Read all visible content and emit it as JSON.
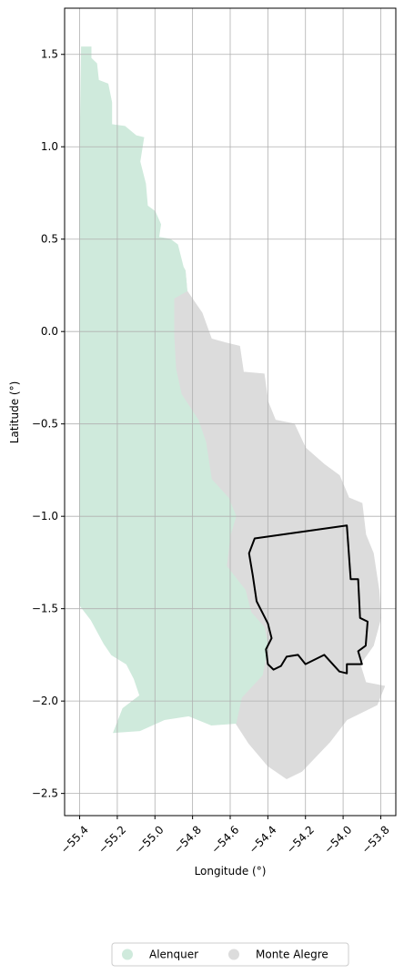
{
  "chart_data": {
    "type": "map",
    "xlabel": "Longitude (°)",
    "ylabel": "Latitude (°)",
    "xlim": [
      -55.48,
      -53.72
    ],
    "ylim": [
      -2.62,
      1.75
    ],
    "x_ticks": [
      {
        "value": -55.4,
        "label": "−55.4"
      },
      {
        "value": -55.2,
        "label": "−55.2"
      },
      {
        "value": -55.0,
        "label": "−55.0"
      },
      {
        "value": -54.8,
        "label": "−54.8"
      },
      {
        "value": -54.6,
        "label": "−54.6"
      },
      {
        "value": -54.4,
        "label": "−54.4"
      },
      {
        "value": -54.2,
        "label": "−54.2"
      },
      {
        "value": -54.0,
        "label": "−54.0"
      },
      {
        "value": -53.8,
        "label": "−53.8"
      }
    ],
    "y_ticks": [
      {
        "value": 1.5,
        "label": "1.5"
      },
      {
        "value": 1.0,
        "label": "1.0"
      },
      {
        "value": 0.5,
        "label": "0.5"
      },
      {
        "value": 0.0,
        "label": "0.0"
      },
      {
        "value": -0.5,
        "label": "−0.5"
      },
      {
        "value": -1.0,
        "label": "−1.0"
      },
      {
        "value": -1.5,
        "label": "−1.5"
      },
      {
        "value": -2.0,
        "label": "−2.0"
      },
      {
        "value": -2.5,
        "label": "−2.5"
      }
    ],
    "grid": true,
    "legend_placement": "bottom-center",
    "regions": [
      {
        "name": "Monte Alegre",
        "color": "#dcdcdc",
        "outline": [
          [
            -54.89,
            0.35
          ],
          [
            -54.84,
            0.33
          ],
          [
            -54.83,
            0.22
          ],
          [
            -54.75,
            0.1
          ],
          [
            -54.7,
            -0.04
          ],
          [
            -54.63,
            -0.06
          ],
          [
            -54.55,
            -0.08
          ],
          [
            -54.53,
            -0.22
          ],
          [
            -54.42,
            -0.23
          ],
          [
            -54.4,
            -0.38
          ],
          [
            -54.36,
            -0.48
          ],
          [
            -54.26,
            -0.5
          ],
          [
            -54.2,
            -0.63
          ],
          [
            -54.1,
            -0.72
          ],
          [
            -54.02,
            -0.78
          ],
          [
            -53.97,
            -0.9
          ],
          [
            -53.9,
            -0.93
          ],
          [
            -53.88,
            -1.1
          ],
          [
            -53.84,
            -1.2
          ],
          [
            -53.81,
            -1.4
          ],
          [
            -53.8,
            -1.55
          ],
          [
            -53.84,
            -1.7
          ],
          [
            -53.91,
            -1.8
          ],
          [
            -53.88,
            -1.9
          ],
          [
            -53.78,
            -1.92
          ],
          [
            -53.82,
            -2.02
          ],
          [
            -53.98,
            -2.1
          ],
          [
            -54.07,
            -2.22
          ],
          [
            -54.22,
            -2.38
          ],
          [
            -54.3,
            -2.42
          ],
          [
            -54.4,
            -2.35
          ],
          [
            -54.5,
            -2.23
          ],
          [
            -54.57,
            -2.12
          ],
          [
            -54.54,
            -1.98
          ],
          [
            -54.43,
            -1.86
          ],
          [
            -54.4,
            -1.7
          ],
          [
            -54.42,
            -1.6
          ],
          [
            -54.49,
            -1.52
          ],
          [
            -54.52,
            -1.4
          ],
          [
            -54.62,
            -1.27
          ],
          [
            -54.6,
            -1.1
          ],
          [
            -54.57,
            -1.0
          ],
          [
            -54.61,
            -0.9
          ],
          [
            -54.7,
            -0.8
          ],
          [
            -54.73,
            -0.6
          ],
          [
            -54.77,
            -0.48
          ],
          [
            -54.86,
            -0.34
          ],
          [
            -54.89,
            -0.2
          ],
          [
            -54.9,
            -0.02
          ],
          [
            -54.9,
            0.18
          ]
        ]
      },
      {
        "name": "Alenquer",
        "color": "#cfeadc",
        "outline": [
          [
            -55.39,
            1.54
          ],
          [
            -55.34,
            1.54
          ],
          [
            -55.34,
            1.48
          ],
          [
            -55.31,
            1.45
          ],
          [
            -55.3,
            1.36
          ],
          [
            -55.25,
            1.34
          ],
          [
            -55.23,
            1.24
          ],
          [
            -55.23,
            1.12
          ],
          [
            -55.16,
            1.11
          ],
          [
            -55.1,
            1.06
          ],
          [
            -55.06,
            1.05
          ],
          [
            -55.08,
            0.92
          ],
          [
            -55.05,
            0.8
          ],
          [
            -55.04,
            0.68
          ],
          [
            -55.0,
            0.65
          ],
          [
            -54.97,
            0.58
          ],
          [
            -54.98,
            0.51
          ],
          [
            -54.92,
            0.5
          ],
          [
            -54.88,
            0.47
          ],
          [
            -54.85,
            0.35
          ],
          [
            -54.84,
            0.33
          ],
          [
            -54.83,
            0.22
          ],
          [
            -54.9,
            0.18
          ],
          [
            -54.9,
            -0.02
          ],
          [
            -54.89,
            -0.2
          ],
          [
            -54.86,
            -0.34
          ],
          [
            -54.77,
            -0.48
          ],
          [
            -54.73,
            -0.6
          ],
          [
            -54.7,
            -0.8
          ],
          [
            -54.61,
            -0.9
          ],
          [
            -54.57,
            -1.0
          ],
          [
            -54.6,
            -1.1
          ],
          [
            -54.62,
            -1.27
          ],
          [
            -54.52,
            -1.4
          ],
          [
            -54.49,
            -1.52
          ],
          [
            -54.42,
            -1.6
          ],
          [
            -54.4,
            -1.7
          ],
          [
            -54.43,
            -1.86
          ],
          [
            -54.54,
            -1.98
          ],
          [
            -54.57,
            -2.12
          ],
          [
            -54.7,
            -2.13
          ],
          [
            -54.82,
            -2.08
          ],
          [
            -54.95,
            -2.1
          ],
          [
            -55.08,
            -2.16
          ],
          [
            -55.22,
            -2.17
          ],
          [
            -55.17,
            -2.04
          ],
          [
            -55.08,
            -1.97
          ],
          [
            -55.11,
            -1.88
          ],
          [
            -55.15,
            -1.8
          ],
          [
            -55.23,
            -1.75
          ],
          [
            -55.27,
            -1.69
          ],
          [
            -55.34,
            -1.56
          ],
          [
            -55.4,
            -1.48
          ],
          [
            -55.4,
            -1.1
          ],
          [
            -55.4,
            -0.2
          ],
          [
            -55.4,
            0.8
          ]
        ]
      }
    ],
    "highlight": {
      "color": "#000000",
      "outline": [
        [
          -54.47,
          -1.12
        ],
        [
          -53.98,
          -1.05
        ],
        [
          -53.96,
          -1.34
        ],
        [
          -53.92,
          -1.34
        ],
        [
          -53.91,
          -1.55
        ],
        [
          -53.87,
          -1.57
        ],
        [
          -53.88,
          -1.7
        ],
        [
          -53.92,
          -1.73
        ],
        [
          -53.9,
          -1.8
        ],
        [
          -53.98,
          -1.8
        ],
        [
          -53.98,
          -1.85
        ],
        [
          -54.02,
          -1.84
        ],
        [
          -54.1,
          -1.75
        ],
        [
          -54.2,
          -1.8
        ],
        [
          -54.24,
          -1.75
        ],
        [
          -54.3,
          -1.76
        ],
        [
          -54.33,
          -1.81
        ],
        [
          -54.37,
          -1.83
        ],
        [
          -54.4,
          -1.8
        ],
        [
          -54.41,
          -1.72
        ],
        [
          -54.38,
          -1.66
        ],
        [
          -54.4,
          -1.58
        ],
        [
          -54.43,
          -1.52
        ],
        [
          -54.46,
          -1.46
        ],
        [
          -54.48,
          -1.32
        ],
        [
          -54.5,
          -1.2
        ]
      ]
    },
    "legend": [
      {
        "label": "Alenquer",
        "color": "#cfeadc"
      },
      {
        "label": "Monte Alegre",
        "color": "#dcdcdc"
      }
    ]
  }
}
